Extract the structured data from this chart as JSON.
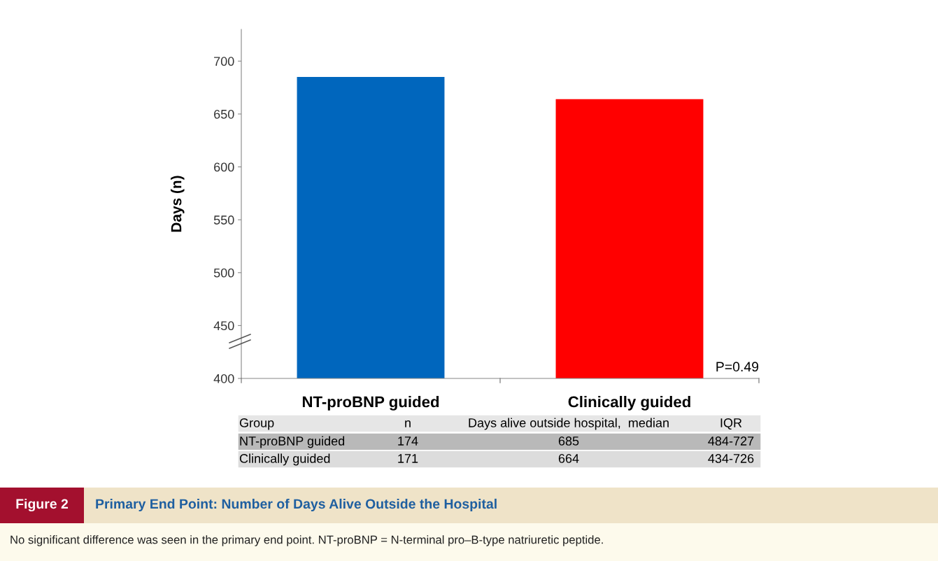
{
  "chart_data": {
    "type": "bar",
    "title": "Primary End Point: Number of Days Alive Outside the Hospital",
    "ylabel": "Days (n)",
    "categories": [
      "NT-proBNP guided",
      "Clinically guided"
    ],
    "values": [
      685,
      664
    ],
    "colors": [
      "#0066bd",
      "#ff0000"
    ],
    "ylim": [
      400,
      730
    ],
    "yticks": [
      400,
      450,
      500,
      550,
      600,
      650,
      700
    ],
    "grid": false,
    "annotations": [
      "P=0.49",
      "Group",
      "n",
      "Days alive outside hospital,  median",
      "IQR",
      "174",
      "685",
      "484-727",
      "171",
      "664",
      "434-726",
      "Figure 2",
      "No significant difference was seen in the primary end point. NT-proBNP = N-terminal pro–B-type natriuretic peptide."
    ]
  }
}
